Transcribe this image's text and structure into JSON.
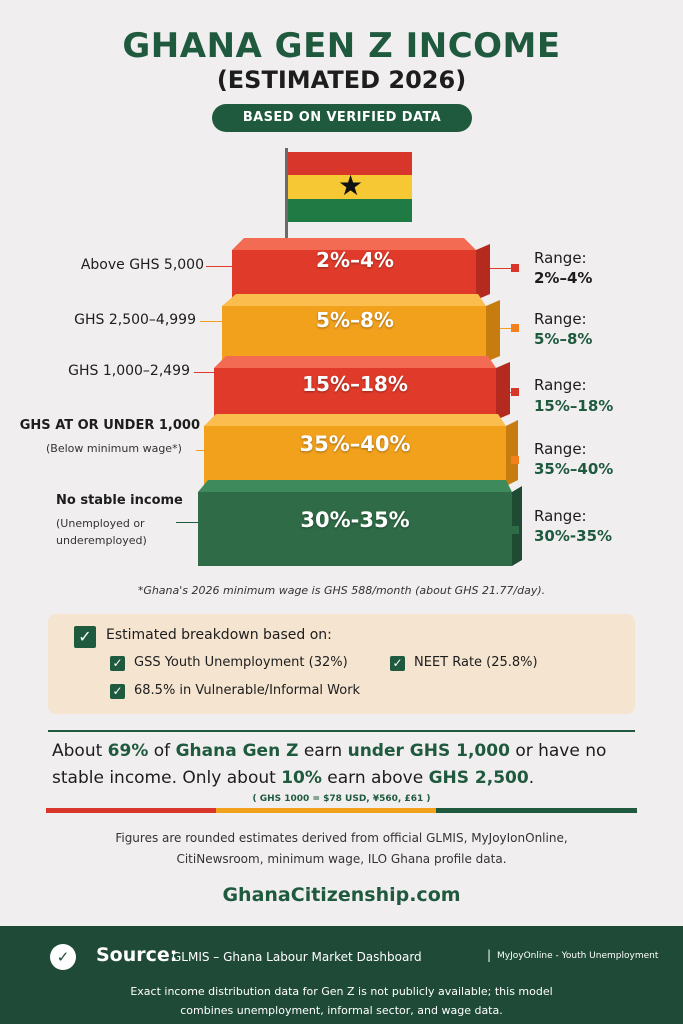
{
  "header": {
    "title": "GHANA GEN Z INCOME",
    "subtitle": "(ESTIMATED 2026)",
    "badge": "BASED ON VERIFIED DATA"
  },
  "colors": {
    "green": "#1f5a3f",
    "red": "#e03a2a",
    "orange": "#f2a11c",
    "dark_green": "#2e6b46",
    "background": "#f1eeef"
  },
  "tiers": [
    {
      "left_label": "Above GHS 5,000",
      "left_sub": "",
      "percent": "2%–4%",
      "range_title": "Range:",
      "range_value": "2%–4%",
      "color": "red"
    },
    {
      "left_label": "GHS 2,500–4,999",
      "left_sub": "",
      "percent": "5%–8%",
      "range_title": "Range:",
      "range_value": "5%–8%",
      "color": "orange"
    },
    {
      "left_label": "GHS 1,000–2,499",
      "left_sub": "",
      "percent": "15%–18%",
      "range_title": "Range:",
      "range_value": "15%–18%",
      "color": "red"
    },
    {
      "left_label": "GHS AT OR UNDER 1,000",
      "left_sub": "(Below minimum wage*)",
      "percent": "35%–40%",
      "range_title": "Range:",
      "range_value": "35%–40%",
      "color": "orange"
    },
    {
      "left_label": "No stable income",
      "left_sub": "(Unemployed or underemployed)",
      "percent": "30%-35%",
      "range_title": "Range:",
      "range_value": "30%-35%",
      "color": "green"
    }
  ],
  "footnote": "*Ghana's 2026 minimum wage is GHS 588/month (about GHS 21.77/day).",
  "breakdown": {
    "title": "Estimated breakdown based on:",
    "items": [
      "GSS Youth Unemployment (32%)",
      "NEET Rate (25.8%)",
      "68.5% in Vulnerable/Informal Work"
    ]
  },
  "summary": {
    "p1": "About ",
    "h1": "69%",
    "p2": " of ",
    "h2": "Ghana Gen Z",
    "p3": " earn ",
    "h3": "under GHS 1,000",
    "p4": " or have no stable income. Only about ",
    "h4": "10%",
    "p5": " earn above ",
    "h5": "GHS 2,500",
    "p6": "."
  },
  "exchange_rate": "( GHS 1000 = $78 USD, ¥560, £61 )",
  "credits": {
    "line1": "Figures are rounded estimates derived from official GLMIS, MyJoyIonOnline,",
    "line2": "CitiNewsroom, minimum wage, ILO Ghana profile data."
  },
  "website": "GhanaCitizenship.com",
  "footer": {
    "source_label": "Source:",
    "source_main": "GLMIS – Ghana Labour Market Dashboard",
    "divider": "|",
    "source_alt": "MyJoyOnline - Youth Unemployment",
    "note_line1": "Exact income distribution data for Gen Z  is not publicly available; this model",
    "note_line2": "combines unemployment, informal sector, and wage data."
  }
}
